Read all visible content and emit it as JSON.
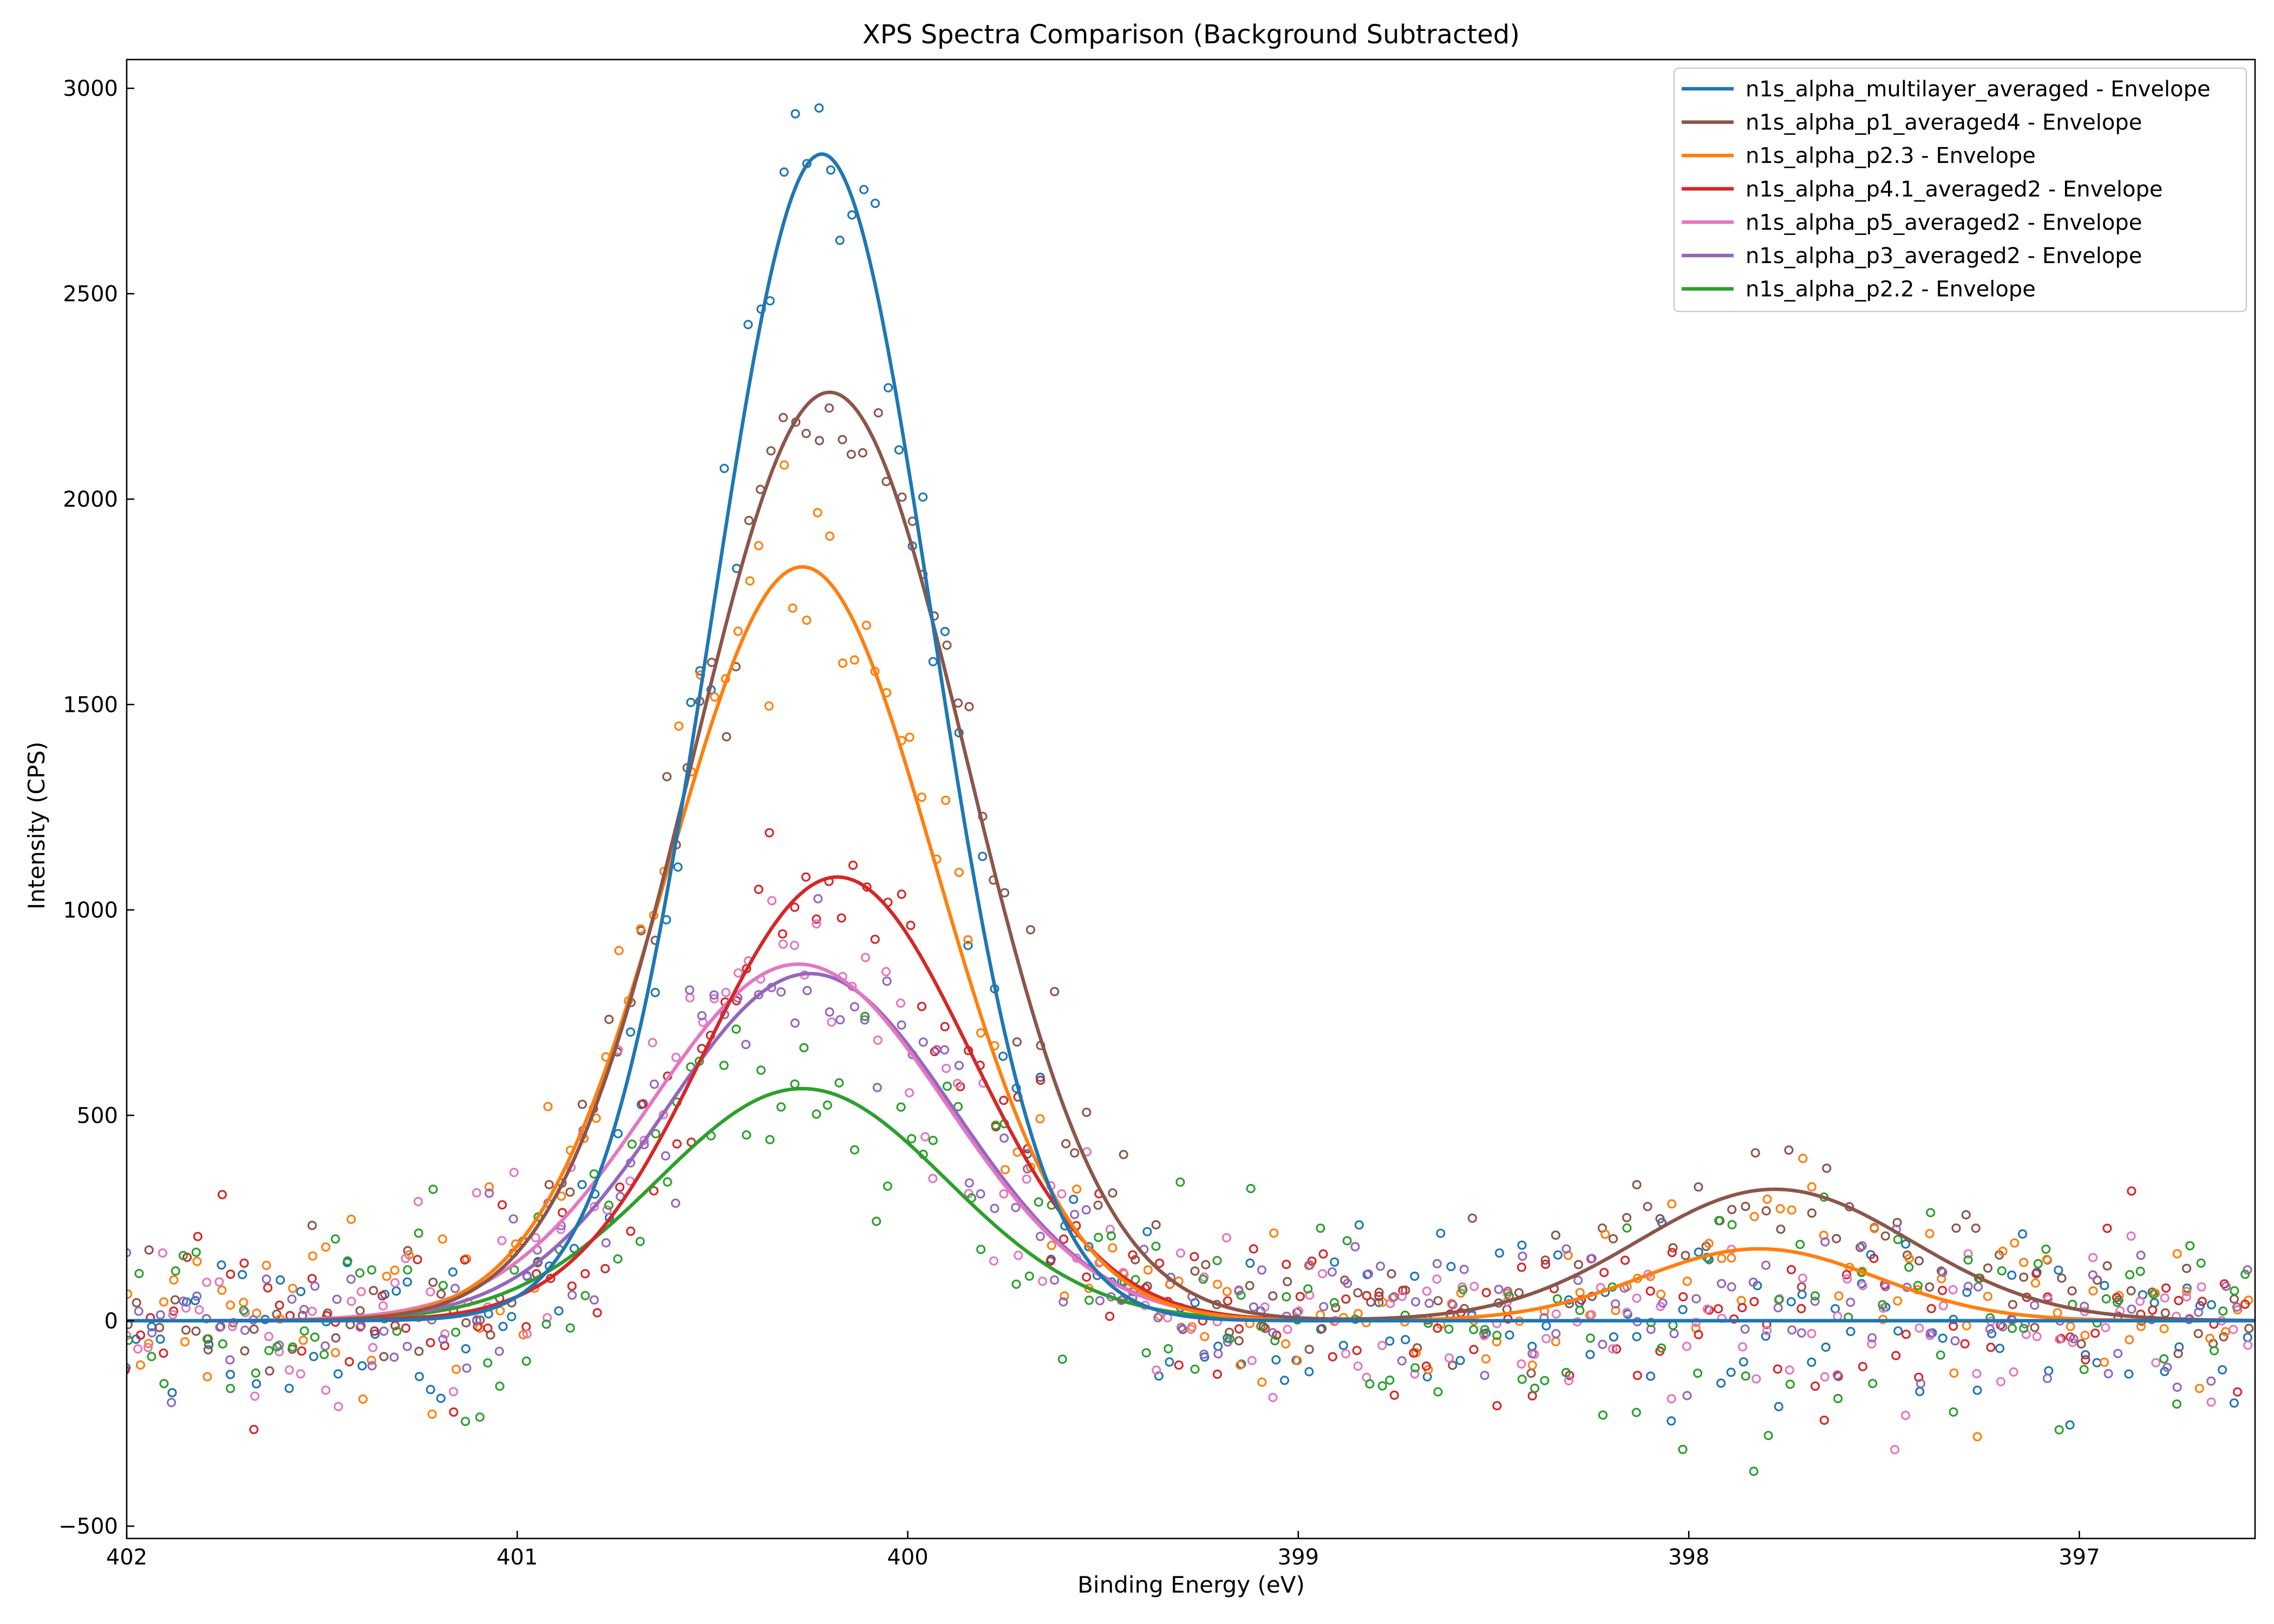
{
  "chart_data": {
    "type": "line",
    "title": "XPS Spectra Comparison (Background Subtracted)",
    "xlabel": "Binding Energy (eV)",
    "ylabel": "Intensity (CPS)",
    "xlim": [
      402,
      396.55
    ],
    "x_reversed": true,
    "ylim": [
      -530,
      3070
    ],
    "xticks": [
      402,
      401,
      400,
      399,
      398,
      397
    ],
    "yticks": [
      -500,
      0,
      500,
      1000,
      1500,
      2000,
      2500,
      3000
    ],
    "grid": false,
    "legend_position": "top-right",
    "series": [
      {
        "name": "n1s_alpha_multilayer_averaged - Envelope",
        "color": "#1f77b4",
        "components": [
          {
            "center": 400.22,
            "amplitude": 2840,
            "sigma": 0.28
          }
        ],
        "noise": 110
      },
      {
        "name": "n1s_alpha_p1_averaged4 - Envelope",
        "color": "#8c564b",
        "components": [
          {
            "center": 400.2,
            "amplitude": 2260,
            "sigma": 0.35
          },
          {
            "center": 397.78,
            "amplitude": 320,
            "sigma": 0.35
          }
        ],
        "noise": 80
      },
      {
        "name": "n1s_alpha_p2.3 - Envelope",
        "color": "#ff7f0e",
        "components": [
          {
            "center": 400.27,
            "amplitude": 1835,
            "sigma": 0.34
          },
          {
            "center": 397.82,
            "amplitude": 175,
            "sigma": 0.3
          }
        ],
        "noise": 110
      },
      {
        "name": "n1s_alpha_p4.1_averaged2 - Envelope",
        "color": "#d62728",
        "components": [
          {
            "center": 400.18,
            "amplitude": 1080,
            "sigma": 0.34
          }
        ],
        "noise": 100
      },
      {
        "name": "n1s_alpha_p5_averaged2 - Envelope",
        "color": "#e377c2",
        "components": [
          {
            "center": 400.28,
            "amplitude": 868,
            "sigma": 0.38
          }
        ],
        "noise": 110
      },
      {
        "name": "n1s_alpha_p3_averaged2 - Envelope",
        "color": "#9467bd",
        "components": [
          {
            "center": 400.25,
            "amplitude": 845,
            "sigma": 0.37
          }
        ],
        "noise": 100
      },
      {
        "name": "n1s_alpha_p2.2 - Envelope",
        "color": "#2ca02c",
        "components": [
          {
            "center": 400.27,
            "amplitude": 565,
            "sigma": 0.37
          }
        ],
        "noise": 140
      }
    ]
  }
}
